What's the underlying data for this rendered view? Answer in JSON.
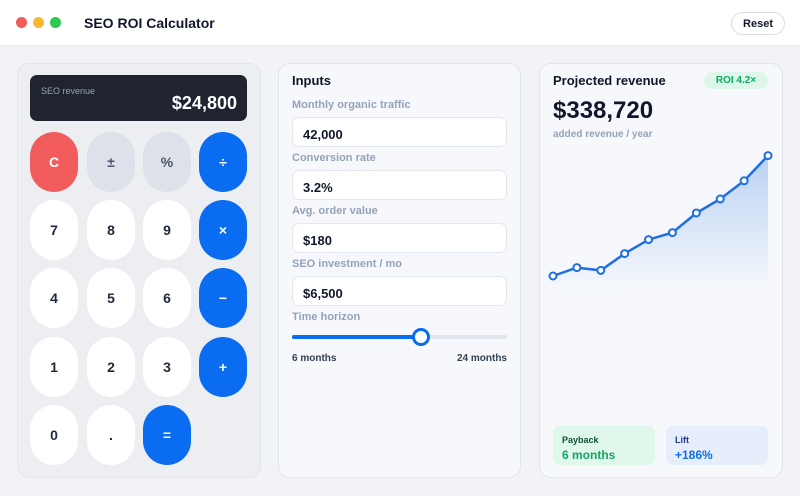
{
  "header": {
    "title": "SEO ROI Calculator",
    "reset": "Reset"
  },
  "calculator": {
    "display_label": "SEO revenue",
    "display_value": "$24,800",
    "keys": [
      "C",
      "±",
      "%",
      "÷",
      "7",
      "8",
      "9",
      "×",
      "4",
      "5",
      "6",
      "−",
      "1",
      "2",
      "3",
      "+",
      "0",
      ".",
      "="
    ]
  },
  "inputs": {
    "title": "Inputs",
    "fields": [
      {
        "label": "Monthly organic traffic",
        "value": "42,000"
      },
      {
        "label": "Conversion rate",
        "value": "3.2%"
      },
      {
        "label": "Avg. order value",
        "value": "$180"
      },
      {
        "label": "SEO investment / mo",
        "value": "$6,500"
      }
    ],
    "slider": {
      "label": "Time horizon",
      "min_label": "6 months",
      "max_label": "24 months"
    }
  },
  "results": {
    "title": "Projected revenue",
    "badge": "ROI 4.2×",
    "amount": "$338,720",
    "caption": "added revenue / year",
    "cards": [
      {
        "label": "Payback",
        "value": "6 months"
      },
      {
        "label": "Lift",
        "value": "+186%"
      }
    ]
  },
  "chart_data": {
    "type": "line",
    "values": [
      10,
      16,
      14,
      26,
      36,
      41,
      55,
      65,
      78,
      96
    ],
    "ylim": [
      0,
      100
    ],
    "color": "#1f6fe0"
  }
}
